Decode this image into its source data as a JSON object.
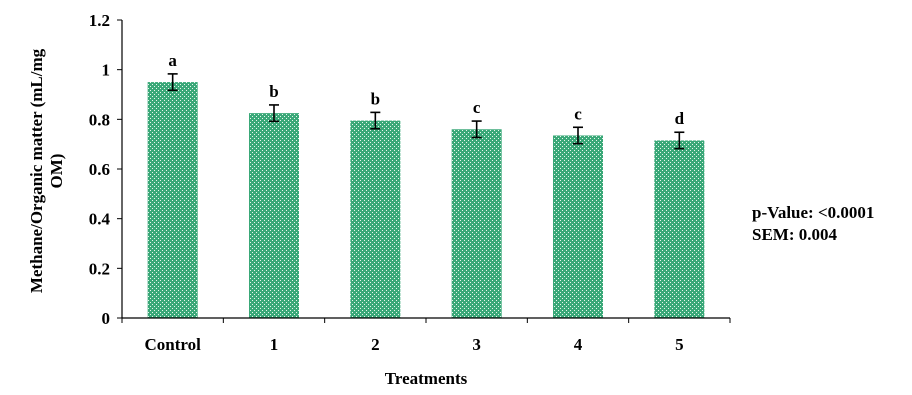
{
  "chart_data": {
    "type": "bar",
    "categories": [
      "Control",
      "1",
      "2",
      "3",
      "4",
      "5"
    ],
    "values": [
      0.95,
      0.825,
      0.795,
      0.76,
      0.735,
      0.715
    ],
    "error": [
      0.033,
      0.033,
      0.033,
      0.033,
      0.033,
      0.033
    ],
    "significance_letters": [
      "a",
      "b",
      "b",
      "c",
      "c",
      "d"
    ],
    "xlabel": "Treatments",
    "ylabel": "Methane/Organic matter (mL/mg OM)",
    "ylim": [
      0,
      1.2
    ],
    "yticks": [
      "0",
      "0.2",
      "0.4",
      "0.6",
      "0.8",
      "1",
      "1.2"
    ],
    "grid": false,
    "bar_color": "#3aa878",
    "annotations": [
      "p-Value: <0.0001",
      "SEM: 0.004"
    ]
  }
}
